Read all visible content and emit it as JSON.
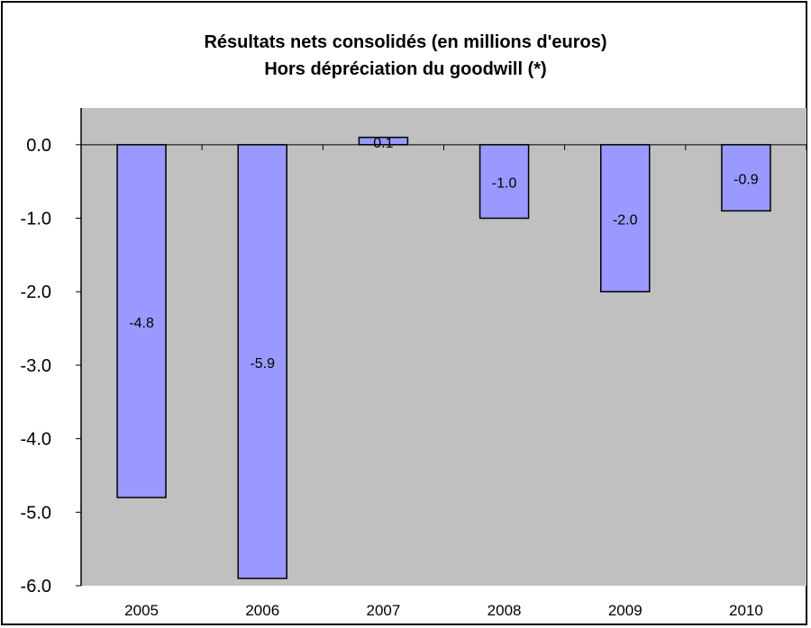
{
  "chart_data": {
    "type": "bar",
    "title_lines": [
      "Résultats nets consolidés (en millions d'euros)",
      "Hors dépréciation du goodwill (*)"
    ],
    "categories": [
      "2005",
      "2006",
      "2007",
      "2008",
      "2009",
      "2010"
    ],
    "values": [
      -4.8,
      -5.9,
      0.1,
      -1.0,
      -2.0,
      -0.9
    ],
    "data_labels": [
      "-4.8",
      "-5.9",
      "0.1",
      "-1.0",
      "-2.0",
      "-0.9"
    ],
    "y_ticks": [
      "0.0",
      "-1.0",
      "-2.0",
      "-3.0",
      "-4.0",
      "-5.0",
      "-6.0"
    ],
    "y_tick_values": [
      0,
      -1,
      -2,
      -3,
      -4,
      -5,
      -6
    ],
    "ylim": [
      -6.0,
      0.5
    ],
    "xlabel": "",
    "ylabel": "",
    "grid": false,
    "legend": "none",
    "colors": {
      "bar_fill": "#9999ff",
      "bar_stroke": "#000000",
      "plot_bg": "#c0c0c0",
      "axis": "#000000"
    }
  }
}
